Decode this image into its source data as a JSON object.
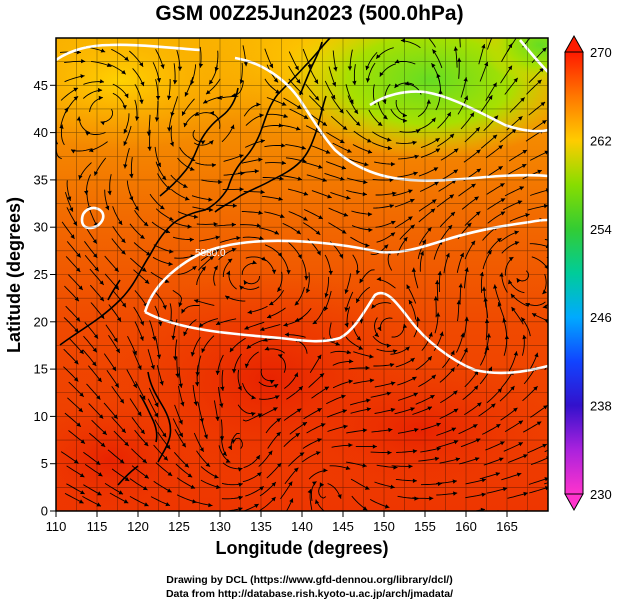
{
  "title": "GSM 00Z25Jun2023 (500.0hPa)",
  "credits": {
    "drawing": "Drawing by DCL (https://www.gfd-dennou.org/library/dcl/)",
    "source": "Data from http://database.rish.kyoto-u.ac.jp/arch/jmadata/"
  },
  "chart_data": {
    "type": "heatmap",
    "xlabel": "Longitude (degrees)",
    "ylabel": "Latitude  (degrees)",
    "xlim": [
      110,
      170
    ],
    "ylim": [
      0,
      50
    ],
    "xticks": [
      110,
      115,
      120,
      125,
      130,
      135,
      140,
      145,
      150,
      155,
      160,
      165
    ],
    "yticks": [
      0,
      5,
      10,
      15,
      20,
      25,
      30,
      35,
      40,
      45
    ],
    "grid": true,
    "colorbar": {
      "min": 230,
      "max": 270,
      "ticks": [
        230,
        238,
        246,
        254,
        262,
        270
      ],
      "position": "right",
      "colors": [
        "#ff33cc",
        "#6600cc",
        "#0033ff",
        "#00aaff",
        "#33cc33",
        "#88dd00",
        "#ffcc00",
        "#ff7700",
        "#ff3300",
        "#ff1100"
      ]
    },
    "contour_label": "5880.0",
    "contour_color": "#ffffff"
  }
}
